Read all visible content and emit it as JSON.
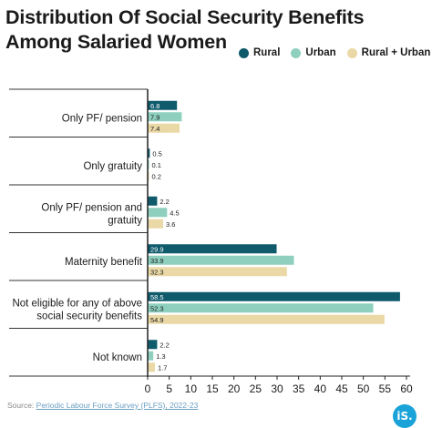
{
  "header": {
    "title": "Distribution Of Social Security Benefits Among Salaried Women"
  },
  "legend": {
    "items": [
      {
        "label": "Rural",
        "color": "#0f5a6b"
      },
      {
        "label": "Urban",
        "color": "#8ed0bd"
      },
      {
        "label": "Rural + Urban",
        "color": "#ead9a6"
      }
    ]
  },
  "footer": {
    "source_prefix": "Source: ",
    "source_text": "Periodic Labour Force Survey (PLFS), 2022-23",
    "logo_text": "iS."
  },
  "chart_data": {
    "type": "bar",
    "orientation": "horizontal",
    "title": "Distribution Of Social Security Benefits Among Salaried Women",
    "categories": [
      [
        "Only PF/ pension"
      ],
      [
        "Only gratuity"
      ],
      [
        "Only PF/ pension and",
        "gratuity"
      ],
      [
        "Maternity benefit"
      ],
      [
        "Not eligible for any of above",
        "social security benefits"
      ],
      [
        "Not known"
      ]
    ],
    "series": [
      {
        "name": "Rural",
        "color": "#0f5a6b",
        "values": [
          6.8,
          0.5,
          2.2,
          29.9,
          58.5,
          2.2
        ]
      },
      {
        "name": "Urban",
        "color": "#8ed0bd",
        "values": [
          7.9,
          0.1,
          4.5,
          33.9,
          52.3,
          1.3
        ]
      },
      {
        "name": "Rural + Urban",
        "color": "#ead9a6",
        "values": [
          7.4,
          0.2,
          3.6,
          32.3,
          54.9,
          1.7
        ]
      }
    ],
    "xlim": [
      0,
      60
    ],
    "xticks": [
      "0",
      "5",
      "10",
      "15",
      "20",
      "25",
      "30",
      "35",
      "40",
      "45",
      "50",
      "55",
      "60"
    ],
    "legend_position": "top-right",
    "grid": false
  }
}
